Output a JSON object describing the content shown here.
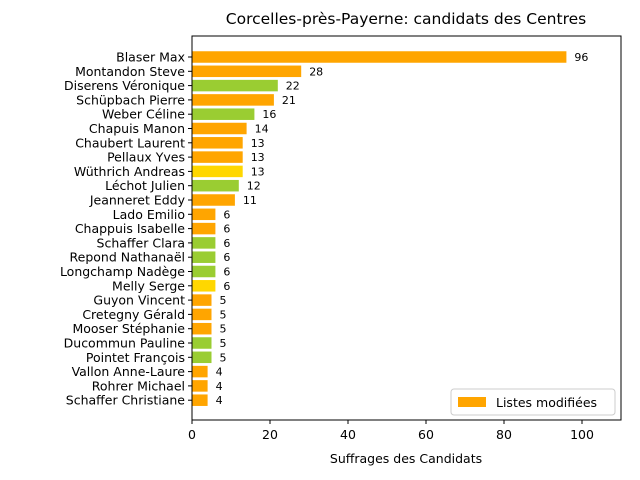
{
  "chart_data": {
    "type": "bar",
    "orientation": "horizontal",
    "title": "Corcelles-près-Payerne: candidats des Centres",
    "xlabel": "Suffrages des Candidats",
    "ylabel": "",
    "xlim": [
      0,
      110
    ],
    "xticks": [
      0,
      20,
      40,
      60,
      80,
      100
    ],
    "grid": false,
    "legend": {
      "placement": "lower-right",
      "entries": [
        {
          "label": "Listes modifiées",
          "color": "#ffa500"
        }
      ]
    },
    "categories": [
      "Blaser Max",
      "Montandon Steve",
      "Diserens Véronique",
      "Schüpbach Pierre",
      "Weber Céline",
      "Chapuis Manon",
      "Chaubert Laurent",
      "Pellaux Yves",
      "Wüthrich Andreas",
      "Léchot Julien",
      "Jeanneret Eddy",
      "Lado Emilio",
      "Chappuis Isabelle",
      "Schaffer Clara",
      "Repond Nathanaël",
      "Longchamp Nadège",
      "Melly Serge",
      "Guyon Vincent",
      "Cretegny Gérald",
      "Mooser Stéphanie",
      "Ducommun Pauline",
      "Pointet François",
      "Vallon Anne-Laure",
      "Rohrer Michael",
      "Schaffer Christiane"
    ],
    "values": [
      96,
      28,
      22,
      21,
      16,
      14,
      13,
      13,
      13,
      12,
      11,
      6,
      6,
      6,
      6,
      6,
      6,
      5,
      5,
      5,
      5,
      5,
      4,
      4,
      4
    ],
    "colors": [
      "#ffa500",
      "#ffa500",
      "#9acd32",
      "#ffa500",
      "#9acd32",
      "#ffa500",
      "#ffa500",
      "#ffa500",
      "#ffd700",
      "#9acd32",
      "#ffa500",
      "#ffa500",
      "#ffa500",
      "#9acd32",
      "#9acd32",
      "#9acd32",
      "#ffd700",
      "#ffa500",
      "#ffa500",
      "#ffa500",
      "#9acd32",
      "#9acd32",
      "#ffa500",
      "#ffa500",
      "#ffa500"
    ]
  }
}
